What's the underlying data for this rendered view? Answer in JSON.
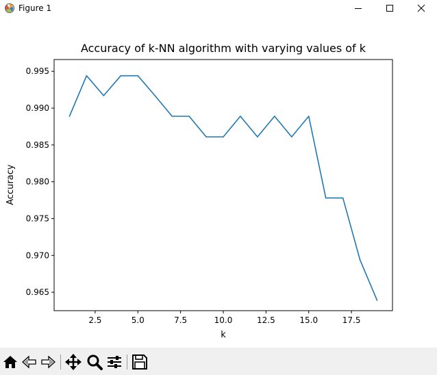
{
  "window": {
    "title": "Figure 1",
    "icons": {
      "app": "matplotlib-icon",
      "minimize": "minimize-icon",
      "maximize": "maximize-icon",
      "close": "close-icon"
    }
  },
  "chart_data": {
    "type": "line",
    "title": "Accuracy of k-NN algorithm with varying values of k",
    "xlabel": "k",
    "ylabel": "Accuracy",
    "xlim": [
      0.1,
      19.9
    ],
    "ylim": [
      0.9625,
      0.9966
    ],
    "xticks": [
      2.5,
      5.0,
      7.5,
      10.0,
      12.5,
      15.0,
      17.5
    ],
    "xtick_labels": [
      "2.5",
      "5.0",
      "7.5",
      "10.0",
      "12.5",
      "15.0",
      "17.5"
    ],
    "yticks": [
      0.965,
      0.97,
      0.975,
      0.98,
      0.985,
      0.99,
      0.995
    ],
    "ytick_labels": [
      "0.965",
      "0.970",
      "0.975",
      "0.980",
      "0.985",
      "0.990",
      "0.995"
    ],
    "grid": false,
    "series": [
      {
        "color": "#1f77b4",
        "x": [
          1,
          2,
          3,
          4,
          5,
          6,
          7,
          8,
          9,
          10,
          11,
          12,
          13,
          14,
          15,
          16,
          17,
          18,
          19
        ],
        "y": [
          0.9889,
          0.9944,
          0.9917,
          0.9944,
          0.9944,
          0.9917,
          0.9889,
          0.9889,
          0.9861,
          0.9861,
          0.9889,
          0.9861,
          0.9889,
          0.9861,
          0.9889,
          0.9778,
          0.9778,
          0.9694,
          0.9639
        ]
      }
    ]
  },
  "toolbar": {
    "buttons": [
      {
        "name": "home-button",
        "icon": "home-icon"
      },
      {
        "name": "back-button",
        "icon": "back-arrow-icon"
      },
      {
        "name": "forward-button",
        "icon": "forward-arrow-icon"
      },
      {
        "name": "pan-button",
        "icon": "move-icon"
      },
      {
        "name": "zoom-button",
        "icon": "magnifier-icon"
      },
      {
        "name": "configure-subplots-button",
        "icon": "sliders-icon"
      },
      {
        "name": "save-button",
        "icon": "floppy-disk-icon"
      }
    ]
  }
}
